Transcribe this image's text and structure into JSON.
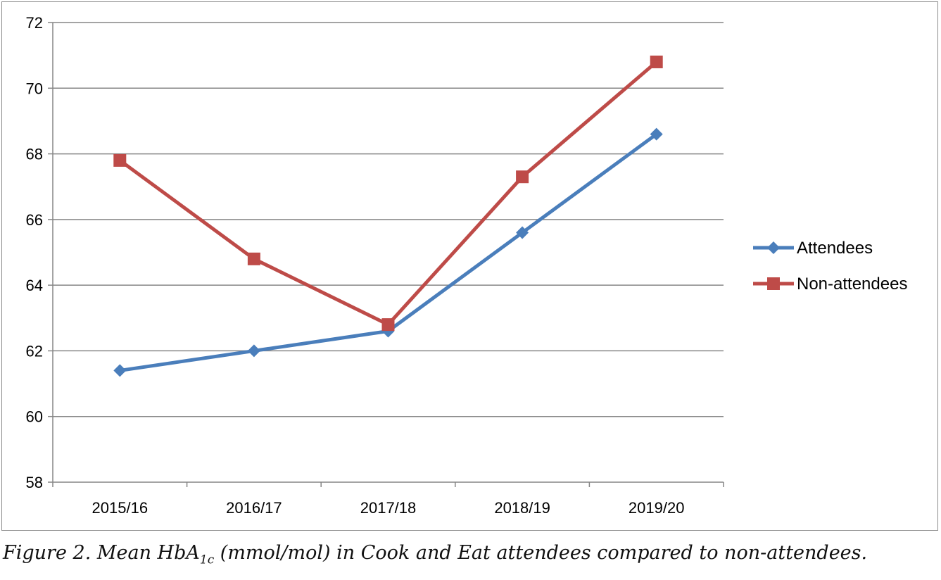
{
  "chart_data": {
    "type": "line",
    "categories": [
      "2015/16",
      "2016/17",
      "2017/18",
      "2018/19",
      "2019/20"
    ],
    "series": [
      {
        "name": "Attendees",
        "values": [
          61.4,
          62.0,
          62.6,
          65.6,
          68.6
        ],
        "color": "#4a7ebb",
        "marker": "diamond"
      },
      {
        "name": "Non-attendees",
        "values": [
          67.8,
          64.8,
          62.8,
          67.3,
          70.8
        ],
        "color": "#be4b48",
        "marker": "square"
      }
    ],
    "ylim": [
      58,
      72
    ],
    "yticks": [
      58,
      60,
      62,
      64,
      66,
      68,
      70,
      72
    ],
    "grid": true,
    "legend_position": "right"
  },
  "caption": {
    "before": "Figure 2. Mean HbA",
    "subscript": "1c",
    "after": " (mmol/mol) in Cook and Eat attendees compared to non-attendees."
  },
  "colors": {
    "gridline": "#868686",
    "axis": "#868686"
  }
}
